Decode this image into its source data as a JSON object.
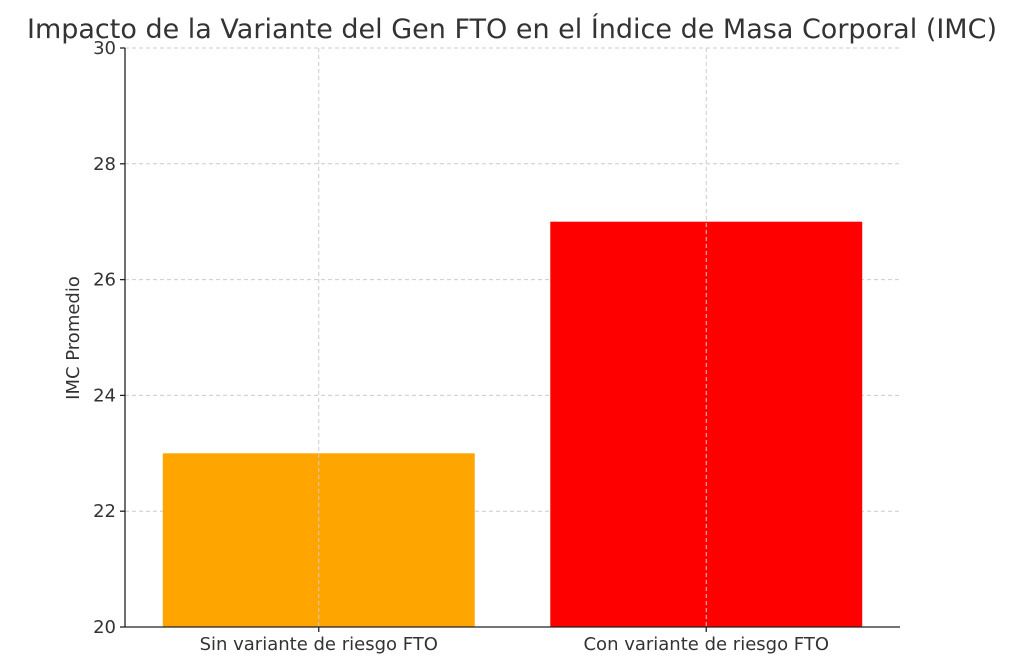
{
  "chart_data": {
    "type": "bar",
    "title": "Impacto de la Variante del Gen FTO en el Índice de Masa Corporal (IMC)",
    "xlabel": "",
    "ylabel": "IMC Promedio",
    "categories": [
      "Sin variante de riesgo FTO",
      "Con variante de riesgo FTO"
    ],
    "values": [
      23,
      27
    ],
    "colors": [
      "#FFA500",
      "#FF0000"
    ],
    "ylim": [
      20,
      30
    ],
    "yticks": [
      20,
      22,
      24,
      26,
      28,
      30
    ],
    "grid": true
  }
}
